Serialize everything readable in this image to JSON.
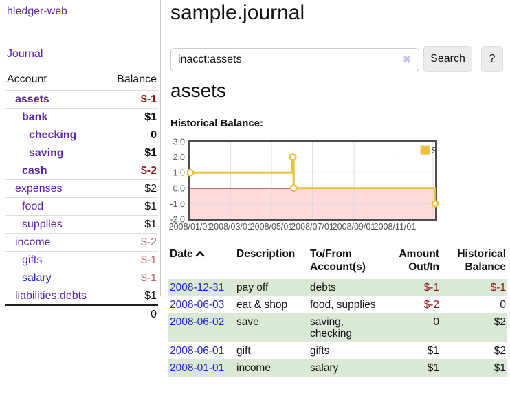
{
  "app": {
    "title": "hledger-web"
  },
  "colors": {
    "accent_purple": "#5b23a8",
    "link_blue": "#2323cc",
    "negative_strong": "#8b1515",
    "negative_muted": "#b36b6b",
    "row_green": "#d9e9d5",
    "series_gold": "#edc240"
  },
  "sidebar": {
    "journal_link": "Journal",
    "accounts_header": {
      "account": "Account",
      "balance": "Balance"
    },
    "accounts": [
      {
        "label": "assets",
        "balance": "$-1",
        "indent": 1,
        "bold": true,
        "neg": "strong",
        "visited": true
      },
      {
        "label": "bank",
        "balance": "$1",
        "indent": 2,
        "bold": true,
        "neg": "",
        "visited": true
      },
      {
        "label": "checking",
        "balance": "0",
        "indent": 3,
        "bold": true,
        "neg": "",
        "visited": true
      },
      {
        "label": "saving",
        "balance": "$1",
        "indent": 3,
        "bold": true,
        "neg": "",
        "visited": true
      },
      {
        "label": "cash",
        "balance": "$-2",
        "indent": 2,
        "bold": true,
        "neg": "strong",
        "visited": true
      },
      {
        "label": "expenses",
        "balance": "$2",
        "indent": 1,
        "bold": false,
        "neg": "",
        "visited": true
      },
      {
        "label": "food",
        "balance": "$1",
        "indent": 2,
        "bold": false,
        "neg": "",
        "visited": true
      },
      {
        "label": "supplies",
        "balance": "$1",
        "indent": 2,
        "bold": false,
        "neg": "",
        "visited": true
      },
      {
        "label": "income",
        "balance": "$-2",
        "indent": 1,
        "bold": false,
        "neg": "muted",
        "visited": true
      },
      {
        "label": "gifts",
        "balance": "$-1",
        "indent": 2,
        "bold": false,
        "neg": "muted",
        "visited": true
      },
      {
        "label": "salary",
        "balance": "$-1",
        "indent": 2,
        "bold": false,
        "neg": "muted",
        "visited": false
      },
      {
        "label": "liabilities:debts",
        "balance": "$1",
        "indent": 1,
        "bold": false,
        "neg": "",
        "visited": true
      }
    ],
    "total": "0"
  },
  "main": {
    "title": "sample.journal",
    "search": {
      "value": "inacct:assets",
      "clear_icon": "✖",
      "button_label": "Search",
      "help_label": "?"
    },
    "account_heading": "assets",
    "chart_title": "Historical Balance:",
    "register": {
      "headers": {
        "date": "Date",
        "description": "Description",
        "accounts": "To/From Account(s)",
        "amount": "Amount Out/In",
        "balance": "Historical Balance"
      },
      "rows": [
        {
          "date": "2008-12-31",
          "description": "pay off",
          "accounts": "debts",
          "amount": "$-1",
          "balance": "$-1",
          "amount_neg": true,
          "balance_neg": true
        },
        {
          "date": "2008-06-03",
          "description": "eat & shop",
          "accounts": "food, supplies",
          "amount": "$-2",
          "balance": "0",
          "amount_neg": true,
          "balance_neg": false
        },
        {
          "date": "2008-06-02",
          "description": "save",
          "accounts": "saving, checking",
          "amount": "0",
          "balance": "$2",
          "amount_neg": false,
          "balance_neg": false
        },
        {
          "date": "2008-06-01",
          "description": "gift",
          "accounts": "gifts",
          "amount": "$1",
          "balance": "$2",
          "amount_neg": false,
          "balance_neg": false
        },
        {
          "date": "2008-01-01",
          "description": "income",
          "accounts": "salary",
          "amount": "$1",
          "balance": "$1",
          "amount_neg": false,
          "balance_neg": false
        }
      ]
    }
  },
  "chart_data": {
    "type": "line",
    "step": true,
    "title": "Historical Balance",
    "series": [
      {
        "name": "$",
        "color": "#edc240",
        "points": [
          [
            "2008-01-01",
            1
          ],
          [
            "2008-06-01",
            2
          ],
          [
            "2008-06-02",
            2
          ],
          [
            "2008-06-03",
            0
          ],
          [
            "2008-12-31",
            -1
          ]
        ]
      }
    ],
    "x_range": [
      "2008-01-01",
      "2008-12-31"
    ],
    "ylim": [
      -2,
      3
    ],
    "y_tick_labels": [
      "3.0",
      "2.0",
      "1.0",
      "0.0",
      "-1.0",
      "-2.0"
    ],
    "x_tick_labels": [
      "2008/01/01",
      "2008/03/01",
      "2008/05/01",
      "2008/07/01",
      "2008/09/01",
      "2008/11/01"
    ],
    "legend": {
      "label": "$",
      "position": "top-right"
    },
    "grid": true,
    "negative_region_color": "#ffdcdc",
    "zero_line_color": "#8b0000",
    "axis_text_color": "#545454"
  }
}
